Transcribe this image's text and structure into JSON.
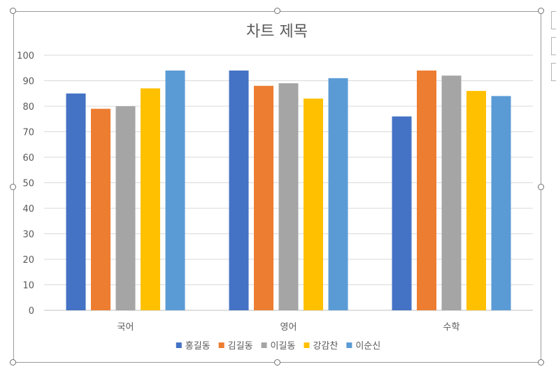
{
  "chart_data": {
    "type": "bar",
    "title": "차트 제목",
    "categories": [
      "국어",
      "영어",
      "수학"
    ],
    "series": [
      {
        "name": "홍길동",
        "color": "#4472C4",
        "values": [
          85,
          94,
          76
        ]
      },
      {
        "name": "김길동",
        "color": "#ED7D31",
        "values": [
          79,
          88,
          94
        ]
      },
      {
        "name": "이길동",
        "color": "#A5A5A5",
        "values": [
          80,
          89,
          92
        ]
      },
      {
        "name": "강감찬",
        "color": "#FFC000",
        "values": [
          87,
          83,
          86
        ]
      },
      {
        "name": "이순신",
        "color": "#5B9BD5",
        "values": [
          94,
          91,
          84
        ]
      }
    ],
    "ylim": [
      0,
      100
    ],
    "yticks": [
      "0",
      "10",
      "20",
      "30",
      "40",
      "50",
      "60",
      "70",
      "80",
      "90",
      "100"
    ],
    "xlabel": "",
    "ylabel": "",
    "grid": true,
    "legend_position": "bottom"
  }
}
